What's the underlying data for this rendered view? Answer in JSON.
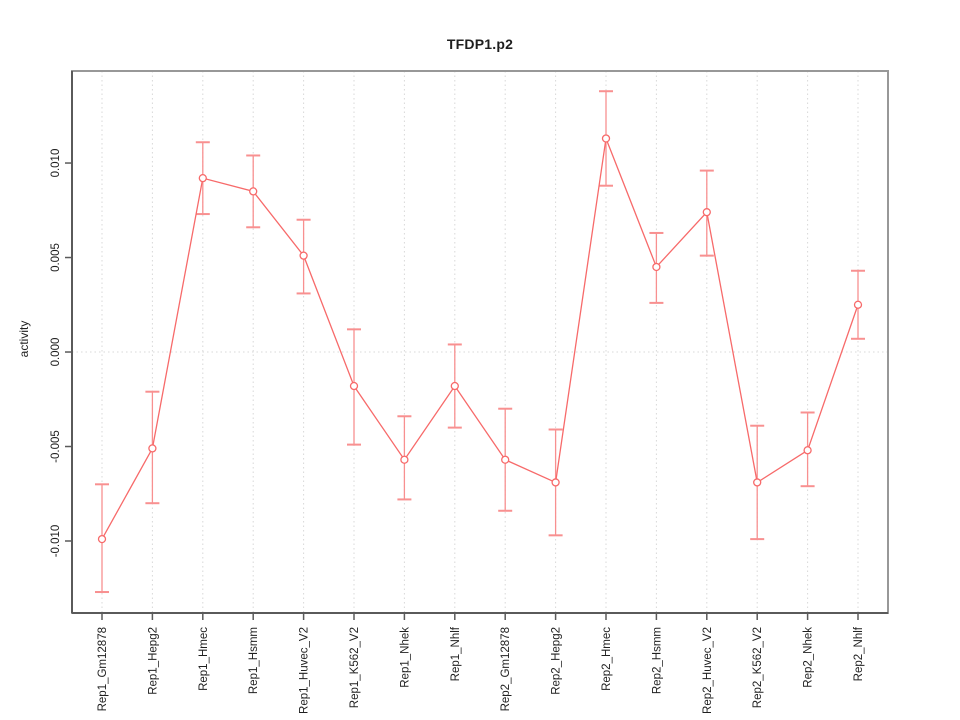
{
  "chart_data": {
    "type": "line",
    "title": "TFDP1.p2",
    "xlabel": "",
    "ylabel": "activity",
    "categories": [
      "Rep1_Gm12878",
      "Rep1_Hepg2",
      "Rep1_Hmec",
      "Rep1_Hsmm",
      "Rep1_Huvec_V2",
      "Rep1_K562_V2",
      "Rep1_Nhek",
      "Rep1_Nhlf",
      "Rep2_Gm12878",
      "Rep2_Hepg2",
      "Rep2_Hmec",
      "Rep2_Hsmm",
      "Rep2_Huvec_V2",
      "Rep2_K562_V2",
      "Rep2_Nhek",
      "Rep2_Nhlf"
    ],
    "series": [
      {
        "name": "activity",
        "values": [
          -0.0099,
          -0.0051,
          0.0092,
          0.0085,
          0.0051,
          -0.0018,
          -0.0057,
          -0.0018,
          -0.0057,
          -0.0069,
          0.0113,
          0.0045,
          0.0074,
          -0.0069,
          -0.0052,
          0.0025
        ],
        "error_low": [
          -0.0127,
          -0.008,
          0.0073,
          0.0066,
          0.0031,
          -0.0049,
          -0.0078,
          -0.004,
          -0.0084,
          -0.0097,
          0.0088,
          0.0026,
          0.0051,
          -0.0099,
          -0.0071,
          0.0007
        ],
        "error_high": [
          -0.007,
          -0.0021,
          0.0111,
          0.0104,
          0.007,
          0.0012,
          -0.0034,
          0.0004,
          -0.003,
          -0.0041,
          0.0138,
          0.0063,
          0.0096,
          -0.0039,
          -0.0032,
          0.0043
        ]
      }
    ],
    "yticks": [
      {
        "value": -0.01,
        "label": "-0.010"
      },
      {
        "value": -0.005,
        "label": "-0.005"
      },
      {
        "value": 0.0,
        "label": "0.000"
      },
      {
        "value": 0.005,
        "label": "0.005"
      },
      {
        "value": 0.01,
        "label": "0.010"
      }
    ],
    "ylim": [
      -0.01381,
      0.01487
    ],
    "grid": {
      "vertical": "dotted line at every category",
      "horizontal": "dotted line at 0 only"
    },
    "legend": "none",
    "colors": {
      "line": "#f76a6a",
      "point_stroke": "#f76a6a",
      "point_fill": "#ffffff",
      "error_bar": "#f89090",
      "frame": "#989898",
      "axis": "#5a5a5a",
      "grid": "#d8d8d8",
      "text": "#1f1f1f",
      "background": "#ffffff"
    }
  }
}
